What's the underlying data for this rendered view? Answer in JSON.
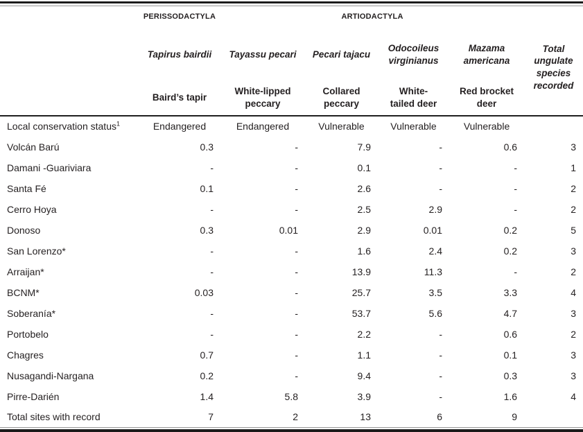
{
  "colors": {
    "text": "#231f20",
    "rule_dark": "#1b1b1b",
    "rule_light": "#969696"
  },
  "table": {
    "orders": [
      "PERISSODACTYLA",
      "ARTIODACTYLA"
    ],
    "columns": [
      {
        "species": [
          "Tapirus bairdii"
        ],
        "common": [
          "Baird’s tapir"
        ],
        "status": "Endangered"
      },
      {
        "species": [
          "Tayassu pecari"
        ],
        "common": [
          "White-lipped",
          "peccary"
        ],
        "status": "Endangered"
      },
      {
        "species": [
          "Pecari tajacu"
        ],
        "common": [
          "Collared",
          "peccary"
        ],
        "status": "Vulnerable"
      },
      {
        "species": [
          "Odocoileus",
          "virginianus"
        ],
        "common": [
          "White-",
          "tailed deer"
        ],
        "status": "Vulnerable"
      },
      {
        "species": [
          "Mazama",
          "americana"
        ],
        "common": [
          "Red brocket",
          "deer"
        ],
        "status": "Vulnerable"
      }
    ],
    "total_header": [
      "Total",
      "ungulate",
      "species",
      "recorded"
    ],
    "status_row": {
      "label": "Local conservation status",
      "sup": "1"
    },
    "rows": [
      {
        "site": "Volcán Barú",
        "values": [
          "0.3",
          "-",
          "7.9",
          "-",
          "0.6",
          "3"
        ]
      },
      {
        "site": "Damani -Guariviara",
        "values": [
          "-",
          "-",
          "0.1",
          "-",
          "-",
          "1"
        ]
      },
      {
        "site": "Santa Fé",
        "values": [
          "0.1",
          "-",
          "2.6",
          "-",
          "-",
          "2"
        ]
      },
      {
        "site": "Cerro Hoya",
        "values": [
          "-",
          "-",
          "2.5",
          "2.9",
          "-",
          "2"
        ]
      },
      {
        "site": "Donoso",
        "values": [
          "0.3",
          "0.01",
          "2.9",
          "0.01",
          "0.2",
          "5"
        ]
      },
      {
        "site": "San Lorenzo*",
        "values": [
          "-",
          "-",
          "1.6",
          "2.4",
          "0.2",
          "3"
        ]
      },
      {
        "site": "Arraijan*",
        "values": [
          "-",
          "-",
          "13.9",
          "11.3",
          "-",
          "2"
        ]
      },
      {
        "site": "BCNM*",
        "values": [
          "0.03",
          "-",
          "25.7",
          "3.5",
          "3.3",
          "4"
        ]
      },
      {
        "site": "Soberanía*",
        "values": [
          "-",
          "-",
          "53.7",
          "5.6",
          "4.7",
          "3"
        ]
      },
      {
        "site": "Portobelo",
        "values": [
          "-",
          "-",
          "2.2",
          "-",
          "0.6",
          "2"
        ]
      },
      {
        "site": "Chagres",
        "values": [
          "0.7",
          "-",
          "1.1",
          "-",
          "0.1",
          "3"
        ]
      },
      {
        "site": "Nusagandi-Nargana",
        "values": [
          "0.2",
          "-",
          "9.4",
          "-",
          "0.3",
          "3"
        ]
      },
      {
        "site": "Pirre-Darién",
        "values": [
          "1.4",
          "5.8",
          "3.9",
          "-",
          "1.6",
          "4"
        ]
      }
    ],
    "total_row": {
      "label": "Total sites with record",
      "values": [
        "7",
        "2",
        "13",
        "6",
        "9",
        ""
      ]
    }
  }
}
